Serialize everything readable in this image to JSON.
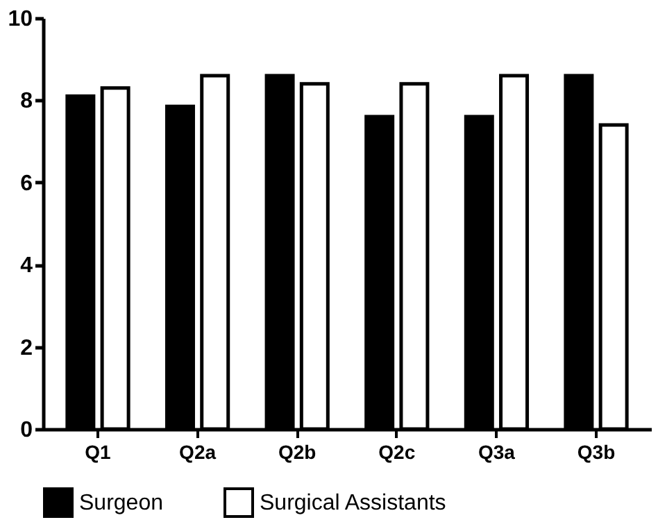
{
  "chart_data": {
    "type": "bar",
    "categories": [
      "Q1",
      "Q2a",
      "Q2b",
      "Q2c",
      "Q3a",
      "Q3b"
    ],
    "series": [
      {
        "name": "Surgeon",
        "color": "#000000",
        "values": [
          8.1,
          7.85,
          8.6,
          7.6,
          7.6,
          8.6
        ]
      },
      {
        "name": "Surgical Assistants",
        "color": "#ffffff",
        "values": [
          8.3,
          8.6,
          8.4,
          8.4,
          8.6,
          7.4
        ]
      }
    ],
    "ylim": [
      0,
      10
    ],
    "yticks": [
      0,
      2,
      4,
      6,
      8,
      10
    ],
    "grid": false,
    "legend": "bottom"
  }
}
